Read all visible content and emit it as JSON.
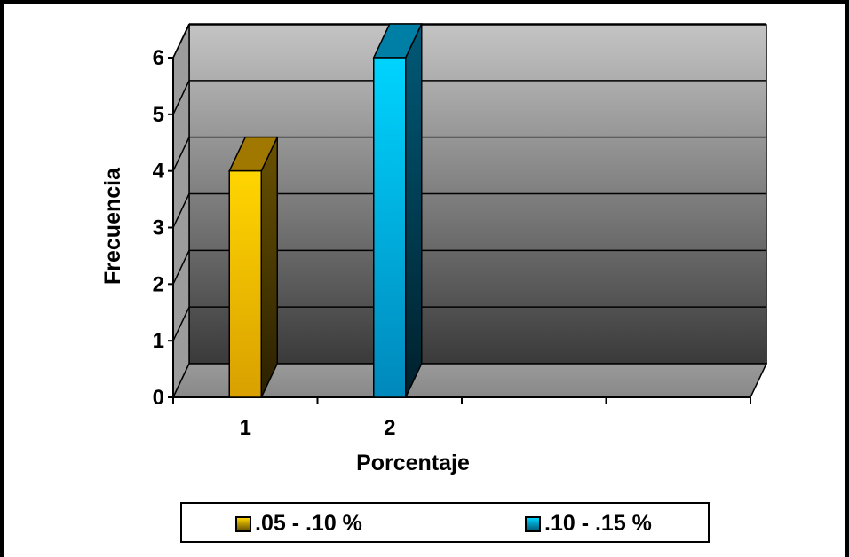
{
  "chart_data": {
    "type": "bar",
    "title": "",
    "xlabel": "Porcentaje",
    "ylabel": "Frecuencia",
    "categories": [
      "1",
      "2",
      "",
      ""
    ],
    "y_ticks": [
      "0",
      "1",
      "2",
      "3",
      "4",
      "5",
      "6"
    ],
    "ylim": [
      0,
      6
    ],
    "grid": true,
    "legend_position": "bottom",
    "series": [
      {
        "name": ".05 - .10 %",
        "color": "#FFCC00",
        "values": [
          4,
          null,
          null,
          null
        ]
      },
      {
        "name": ".10 - .15 %",
        "color": "#00CCFF",
        "values": [
          null,
          6,
          null,
          null
        ]
      }
    ]
  }
}
